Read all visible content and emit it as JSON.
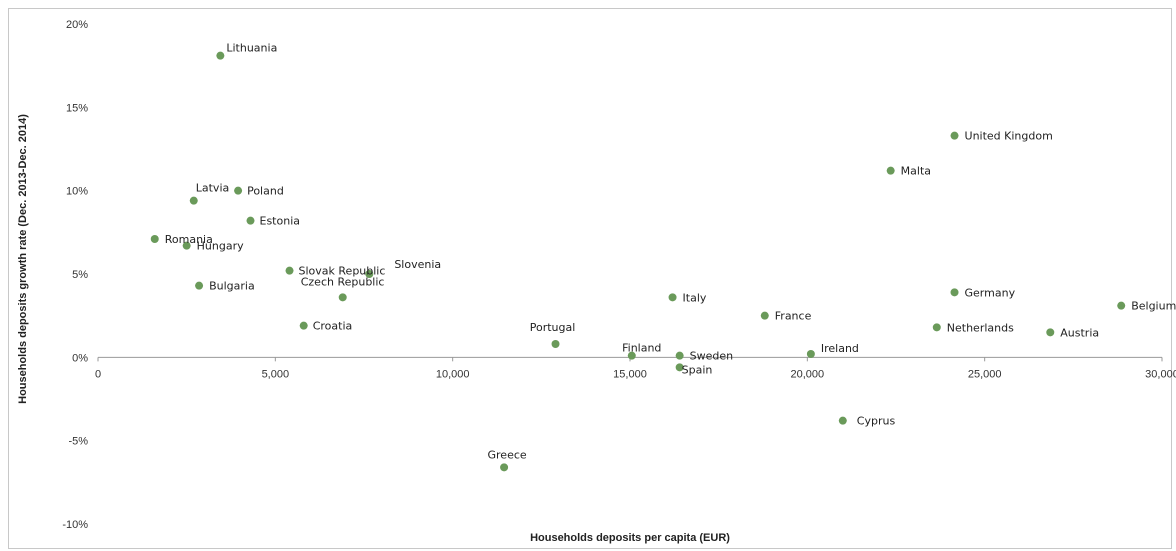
{
  "chart_data": {
    "type": "scatter",
    "title": "",
    "xlabel": "Households deposits per capita (EUR)",
    "ylabel": "Households deposits growth rate (Dec. 2013-Dec. 2014)",
    "xlim": [
      0,
      30000
    ],
    "ylim": [
      -10,
      20
    ],
    "x_ticks": [
      0,
      5000,
      10000,
      15000,
      20000,
      25000,
      30000
    ],
    "x_tick_labels": [
      "0",
      "5,000",
      "10,000",
      "15,000",
      "20,000",
      "25,000",
      "30,000"
    ],
    "y_ticks": [
      -10,
      -5,
      0,
      5,
      10,
      15,
      20
    ],
    "y_tick_labels": [
      "-10%",
      "-5%",
      "0%",
      "5%",
      "10%",
      "15%",
      "20%"
    ],
    "grid": false,
    "legend": "none",
    "marker_color": "#6a9a5a",
    "points": [
      {
        "label": "Lithuania",
        "x": 3450,
        "y": 18.1
      },
      {
        "label": "United Kingdom",
        "x": 24150,
        "y": 13.3
      },
      {
        "label": "Malta",
        "x": 22350,
        "y": 11.2
      },
      {
        "label": "Latvia",
        "x": 2700,
        "y": 9.4
      },
      {
        "label": "Poland",
        "x": 3950,
        "y": 10.0
      },
      {
        "label": "Estonia",
        "x": 4300,
        "y": 8.2
      },
      {
        "label": "Romania",
        "x": 1600,
        "y": 7.1
      },
      {
        "label": "Hungary",
        "x": 2500,
        "y": 6.7
      },
      {
        "label": "Slovak Republic",
        "x": 5400,
        "y": 5.2
      },
      {
        "label": "Slovenia",
        "x": 7650,
        "y": 5.0
      },
      {
        "label": "Bulgaria",
        "x": 2850,
        "y": 4.3
      },
      {
        "label": "Czech Republic",
        "x": 6900,
        "y": 3.6
      },
      {
        "label": "Croatia",
        "x": 5800,
        "y": 1.9
      },
      {
        "label": "Italy",
        "x": 16200,
        "y": 3.6
      },
      {
        "label": "Germany",
        "x": 24150,
        "y": 3.9
      },
      {
        "label": "Belgium",
        "x": 28850,
        "y": 3.1
      },
      {
        "label": "France",
        "x": 18800,
        "y": 2.5
      },
      {
        "label": "Netherlands",
        "x": 23650,
        "y": 1.8
      },
      {
        "label": "Austria",
        "x": 26850,
        "y": 1.5
      },
      {
        "label": "Portugal",
        "x": 12900,
        "y": 0.8
      },
      {
        "label": "Finland",
        "x": 15050,
        "y": 0.1
      },
      {
        "label": "Sweden",
        "x": 16400,
        "y": 0.1
      },
      {
        "label": "Ireland",
        "x": 20100,
        "y": 0.2
      },
      {
        "label": "Spain",
        "x": 16400,
        "y": -0.6
      },
      {
        "label": "Cyprus",
        "x": 21000,
        "y": -3.8
      },
      {
        "label": "Greece",
        "x": 11450,
        "y": -6.6
      }
    ]
  }
}
